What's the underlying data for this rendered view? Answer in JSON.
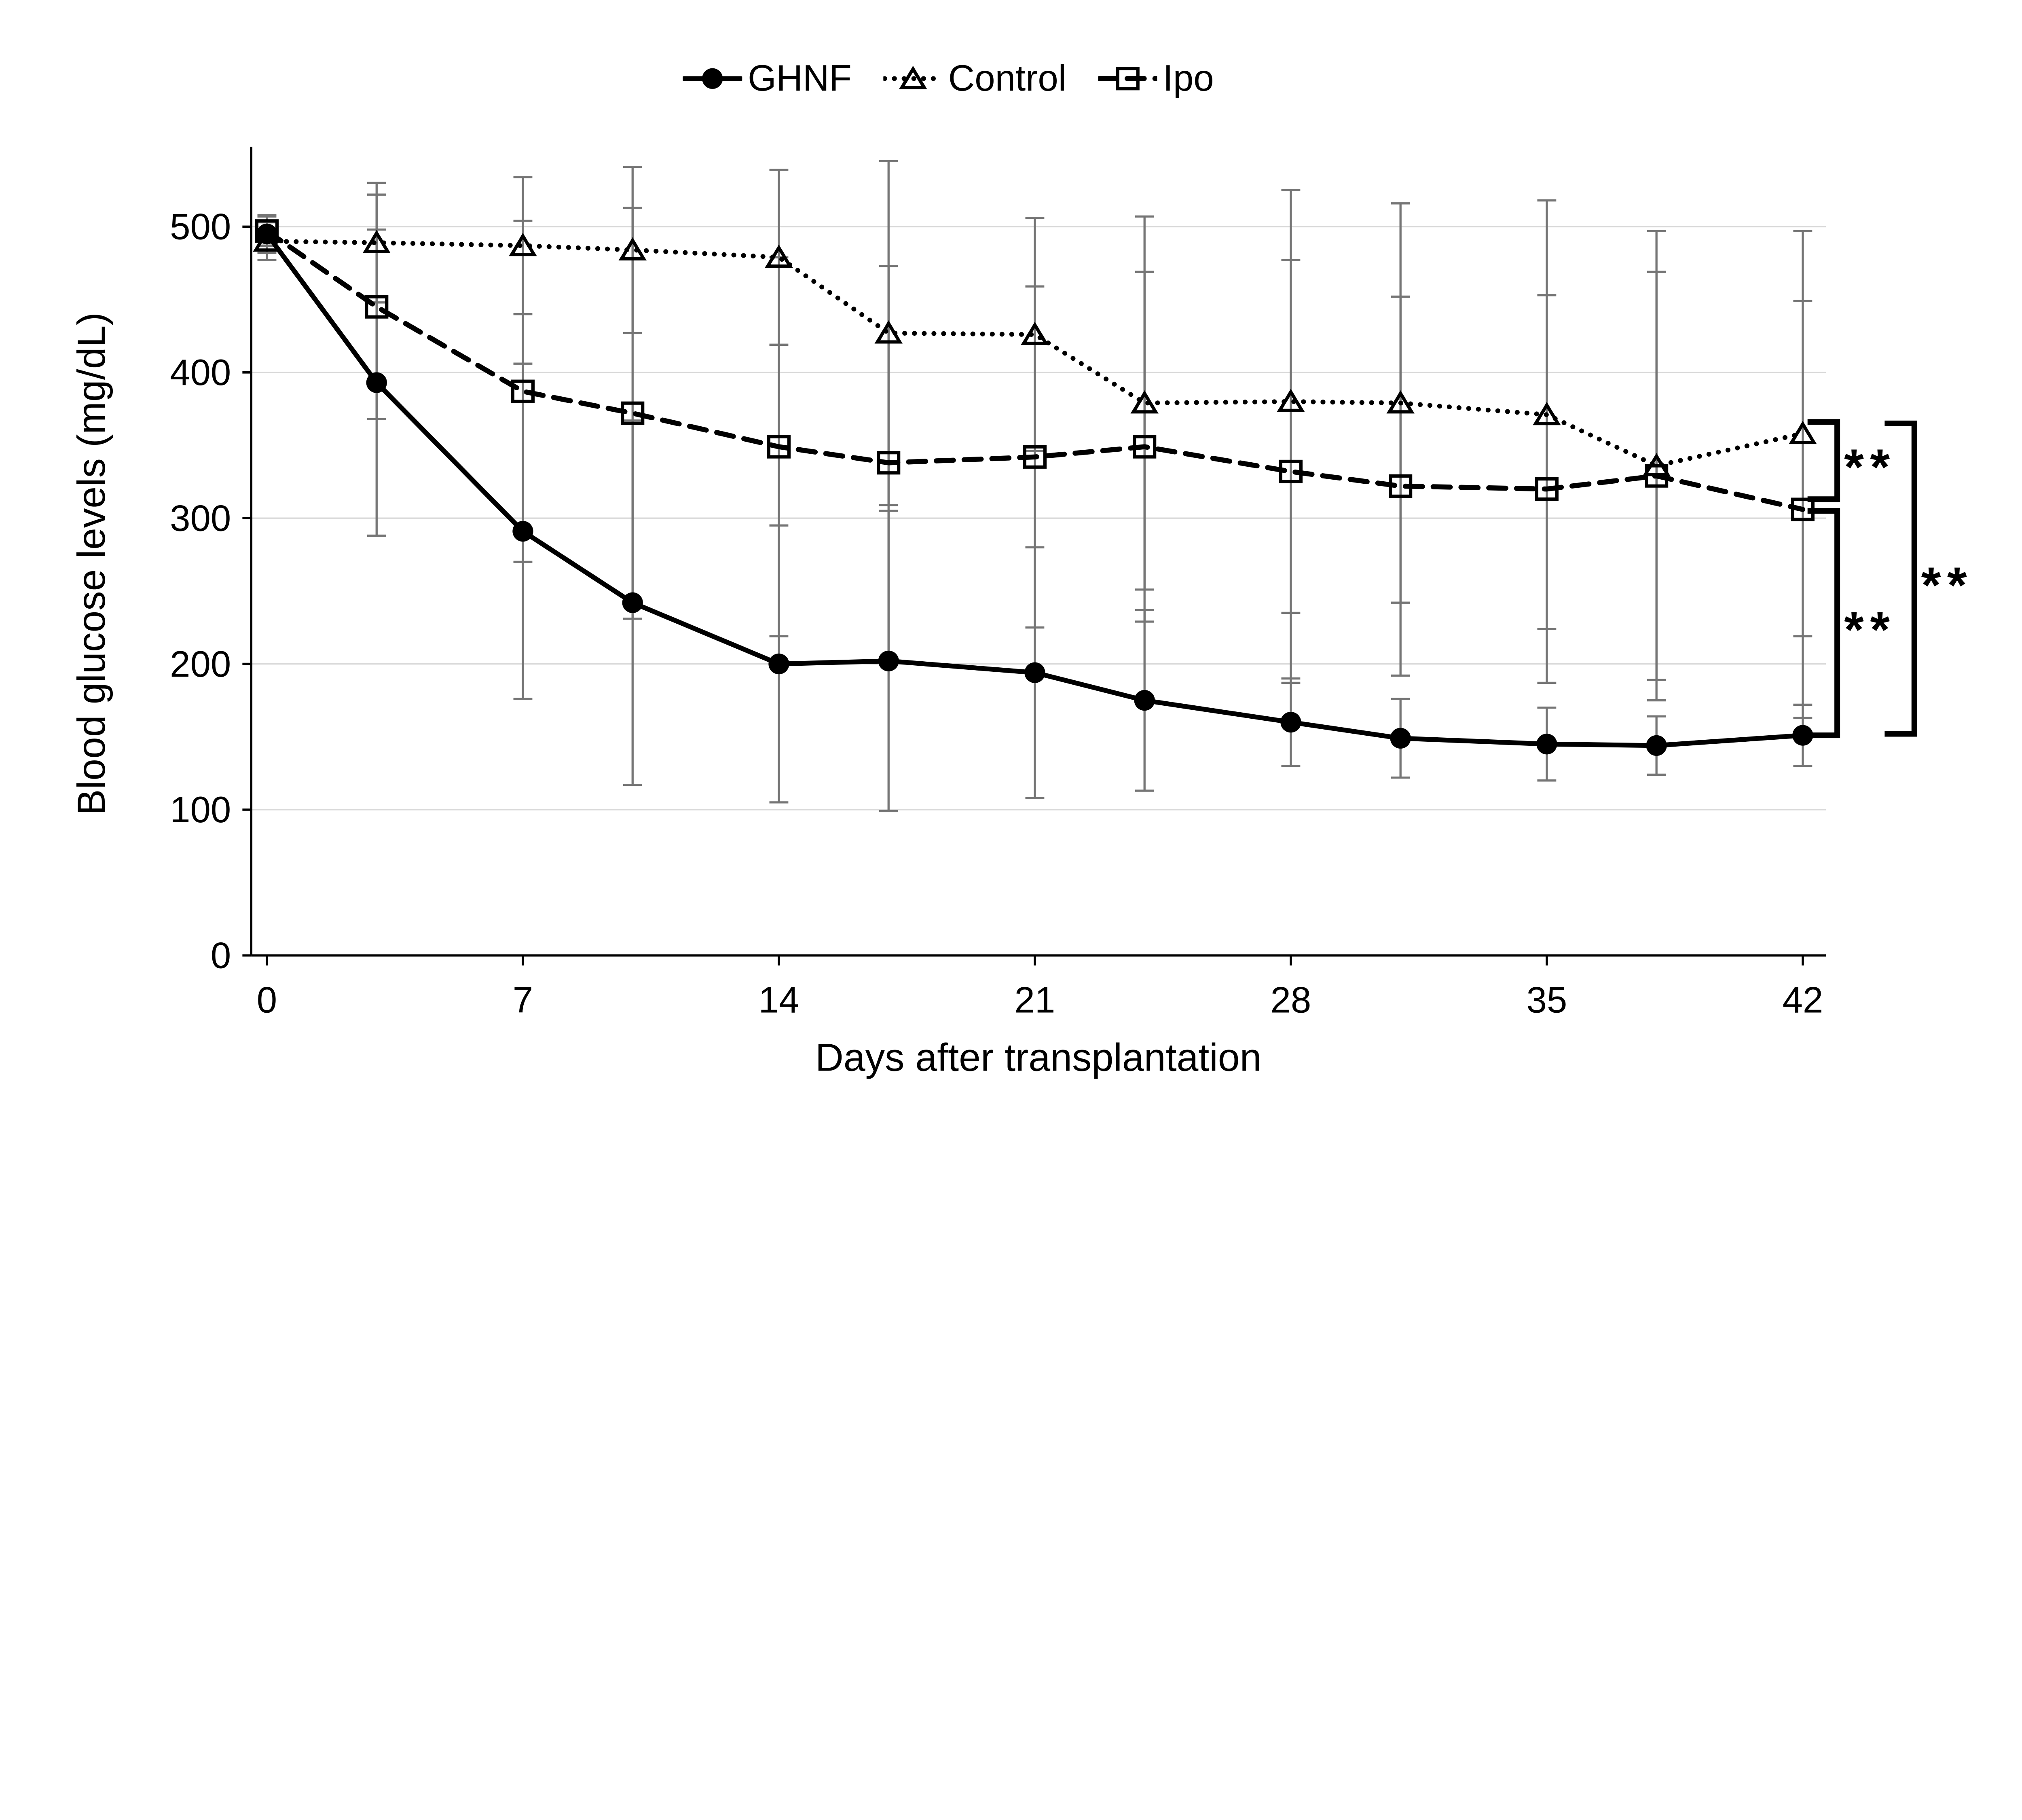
{
  "figure": {
    "background_color": "#ffffff"
  },
  "legend": {
    "position": "top-center",
    "items": [
      {
        "label": "GHNF",
        "sample": "solid-line-filled-circle"
      },
      {
        "label": "Control",
        "sample": "dotted-line-open-triangle"
      },
      {
        "label": "Ipo",
        "sample": "dashed-line-open-square"
      }
    ]
  },
  "chart_data": {
    "type": "line",
    "title": "",
    "xlabel": "Days after transplantation",
    "ylabel": "Blood glucose levels (mg/dL)",
    "x": [
      0,
      3,
      7,
      10,
      14,
      17,
      21,
      24,
      28,
      31,
      35,
      38,
      42
    ],
    "xticks": [
      0,
      7,
      14,
      21,
      28,
      35,
      42
    ],
    "yticks": [
      0,
      100,
      200,
      300,
      400,
      500
    ],
    "xlim": [
      0,
      42
    ],
    "ylim": [
      0,
      554
    ],
    "grid": "horizontal-only",
    "error_bars": "plus-minus-with-caps",
    "series": [
      {
        "name": "Control",
        "line_style": "dotted",
        "marker": "open-triangle",
        "values": [
          490,
          489,
          487,
          484,
          479,
          427,
          426,
          379,
          380,
          379,
          371,
          336,
          358
        ],
        "errors": [
          13,
          41,
          47,
          57,
          60,
          118,
          80,
          128,
          145,
          137,
          147,
          161,
          139
        ]
      },
      {
        "name": "Ipo",
        "line_style": "dashed",
        "marker": "open-square",
        "values": [
          497,
          445,
          387,
          372,
          349,
          338,
          342,
          349,
          332,
          322,
          320,
          329,
          306
        ],
        "errors": [
          10,
          77,
          117,
          141,
          130,
          135,
          117,
          120,
          145,
          130,
          133,
          140,
          143
        ]
      },
      {
        "name": "GHNF",
        "line_style": "solid",
        "marker": "filled-circle",
        "values": [
          495,
          393,
          291,
          242,
          200,
          202,
          194,
          175,
          160,
          149,
          145,
          144,
          151
        ],
        "errors": [
          13,
          105,
          115,
          125,
          95,
          103,
          86,
          62,
          30,
          27,
          25,
          20,
          21
        ]
      }
    ],
    "significance_brackets": [
      {
        "label": "**",
        "between": [
          "Control",
          "Ipo"
        ],
        "y_top": 366,
        "y_bottom": 313,
        "tier": 0
      },
      {
        "label": "**",
        "between": [
          "Ipo",
          "GHNF"
        ],
        "y_top": 305,
        "y_bottom": 151,
        "tier": 0
      },
      {
        "label": "**",
        "between": [
          "Control",
          "GHNF"
        ],
        "y_top": 365,
        "y_bottom": 152,
        "tier": 1
      }
    ],
    "colors": {
      "data": "#000000",
      "error_bars": "#757575",
      "gridlines": "#d9d9d9",
      "background": "#ffffff",
      "text": "#000000"
    }
  }
}
